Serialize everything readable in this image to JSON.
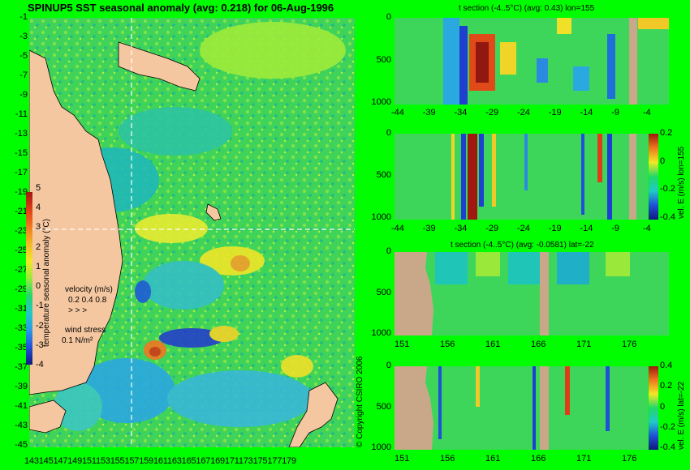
{
  "title": "SPINUP5 SST seasonal anomaly (avg: 0.218) for 06-Aug-1996",
  "copyright": "© Copyright CSIRO 2006",
  "colors": {
    "background": "#01FE00",
    "land": "#F5C7A0",
    "section_land": "#C8A888",
    "grid_line": "#FFFFFF"
  },
  "chart_data": [
    {
      "type": "heatmap",
      "name": "map",
      "title": "SPINUP5 SST seasonal anomaly (avg: 0.218) for 06-Aug-1996",
      "y_ticks": [
        "-1",
        "-3",
        "-5",
        "-7",
        "-9",
        "-11",
        "-13",
        "-15",
        "-17",
        "-19",
        "-21",
        "-23",
        "-25",
        "-27",
        "-29",
        "-31",
        "-33",
        "-35",
        "-37",
        "-39",
        "-41",
        "-43",
        "-45"
      ],
      "x_ticks": [
        "143",
        "145",
        "147",
        "149",
        "151",
        "153",
        "155",
        "157",
        "159",
        "161",
        "163",
        "165",
        "167",
        "169",
        "171",
        "173",
        "175",
        "177",
        "179"
      ],
      "x_tick_string": "143145147149151153155157159161163165167169171173175177179",
      "xlim": [
        143,
        180
      ],
      "ylim": [
        -45,
        0
      ],
      "marker_lon": 155,
      "marker_lat": -22,
      "colorbar": {
        "label": "temperature seasonal anomaly (°C)",
        "ticks": [
          "5",
          "4",
          "3",
          "2",
          "1",
          "0",
          "-1",
          "-2",
          "-3",
          "-4"
        ],
        "range": [
          -4,
          5
        ]
      },
      "velocity_legend": {
        "title": "velocity (m/s)",
        "values": "0.2 0.4 0.8"
      },
      "wind_legend": {
        "title": "wind stress",
        "value": "0.1 N/m²"
      }
    },
    {
      "type": "heatmap",
      "name": "t-section-lon",
      "title": "t section (-4..5°C) (avg: 0.43) lon=155",
      "x_ticks": [
        "-44",
        "-39",
        "-34",
        "-29",
        "-24",
        "-19",
        "-14",
        "-9",
        "-4"
      ],
      "y_ticks": [
        "0",
        "500",
        "1000"
      ],
      "xlim": [
        -45,
        0
      ],
      "ylim": [
        1050,
        0
      ]
    },
    {
      "type": "heatmap",
      "name": "vel-section-lon",
      "title": "",
      "x_ticks": [
        "-44",
        "-39",
        "-34",
        "-29",
        "-24",
        "-19",
        "-14",
        "-9",
        "-4"
      ],
      "y_ticks": [
        "0",
        "500",
        "1000"
      ],
      "colorbar": {
        "label": "vel. E (m/s) lon=155",
        "ticks": [
          "0.2",
          "0",
          "-0.2",
          "-0.4"
        ]
      }
    },
    {
      "type": "heatmap",
      "name": "t-section-lat",
      "title": "t section (-4..5°C) (avg: -0.0581) lat=-22",
      "x_ticks": [
        "151",
        "156",
        "161",
        "166",
        "171",
        "176"
      ],
      "y_ticks": [
        "0",
        "500",
        "1000"
      ]
    },
    {
      "type": "heatmap",
      "name": "vel-section-lat",
      "title": "",
      "x_ticks": [
        "151",
        "156",
        "161",
        "166",
        "171",
        "176"
      ],
      "y_ticks": [
        "0",
        "500",
        "1000"
      ],
      "colorbar": {
        "label": "vel. E (m/s) lat=-22",
        "ticks": [
          "0.4",
          "0.2",
          "0",
          "-0.2",
          "-0.4"
        ]
      }
    }
  ]
}
